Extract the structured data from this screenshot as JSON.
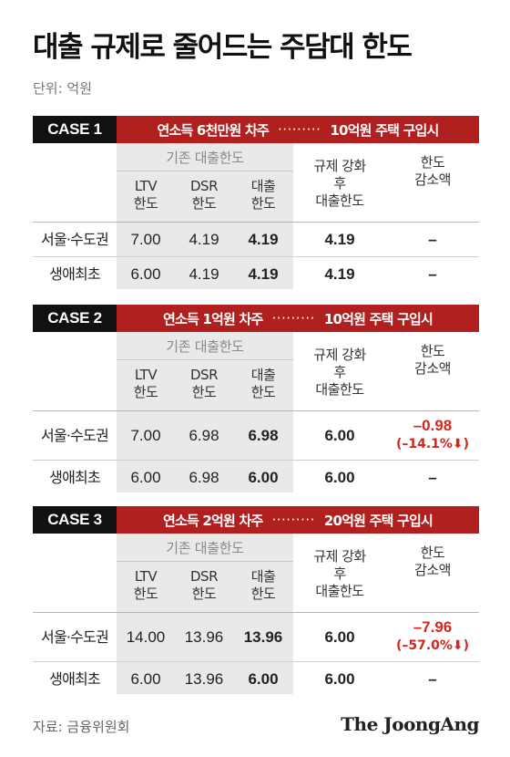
{
  "title": "대출 규제로 줄어드는 주담대 한도",
  "unit": "단위: 억원",
  "headers": {
    "group": "기존 대출한도",
    "ltv": "LTV\n한도",
    "dsr": "DSR\n한도",
    "loan": "대출\n한도",
    "after": "규제 강화\n후\n대출한도",
    "decrease": "한도\n감소액"
  },
  "cases": [
    {
      "label": "CASE 1",
      "income": "연소득 6천만원 차주",
      "dots": "·········",
      "purchase": "10억원 주택 구입시",
      "rows": [
        {
          "region": "서울·수도권",
          "ltv": "7.00",
          "dsr": "4.19",
          "loan": "4.19",
          "after": "4.19",
          "decrease": "–",
          "decrease_pct": ""
        },
        {
          "region": "생애최초",
          "ltv": "6.00",
          "dsr": "4.19",
          "loan": "4.19",
          "after": "4.19",
          "decrease": "–",
          "decrease_pct": ""
        }
      ]
    },
    {
      "label": "CASE 2",
      "income": "연소득 1억원 차주",
      "dots": "·········",
      "purchase": "10억원 주택 구입시",
      "rows": [
        {
          "region": "서울·수도권",
          "ltv": "7.00",
          "dsr": "6.98",
          "loan": "6.98",
          "after": "6.00",
          "decrease": "–0.98",
          "decrease_pct": "(–14.1%⬇)"
        },
        {
          "region": "생애최초",
          "ltv": "6.00",
          "dsr": "6.98",
          "loan": "6.00",
          "after": "6.00",
          "decrease": "–",
          "decrease_pct": ""
        }
      ]
    },
    {
      "label": "CASE 3",
      "income": "연소득 2억원 차주",
      "dots": "·········",
      "purchase": "20억원 주택 구입시",
      "rows": [
        {
          "region": "서울·수도권",
          "ltv": "14.00",
          "dsr": "13.96",
          "loan": "13.96",
          "after": "6.00",
          "decrease": "–7.96",
          "decrease_pct": "(–57.0%⬇)"
        },
        {
          "region": "생애최초",
          "ltv": "6.00",
          "dsr": "13.96",
          "loan": "6.00",
          "after": "6.00",
          "decrease": "–",
          "decrease_pct": ""
        }
      ]
    }
  ],
  "source": "자료: 금융위원회",
  "logo": "The JoongAng"
}
